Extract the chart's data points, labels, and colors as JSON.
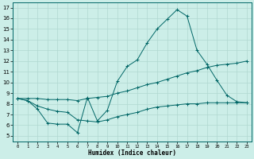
{
  "xlabel": "Humidex (Indice chaleur)",
  "background_color": "#cceee8",
  "grid_color": "#b0d8d0",
  "line_color": "#006666",
  "xlim": [
    -0.5,
    23.5
  ],
  "ylim": [
    4.5,
    17.5
  ],
  "xticks": [
    0,
    1,
    2,
    3,
    4,
    5,
    6,
    7,
    8,
    9,
    10,
    11,
    12,
    13,
    14,
    15,
    16,
    17,
    18,
    19,
    20,
    21,
    22,
    23
  ],
  "yticks": [
    5,
    6,
    7,
    8,
    9,
    10,
    11,
    12,
    13,
    14,
    15,
    16,
    17
  ],
  "series1_x": [
    0,
    1,
    2,
    3,
    4,
    5,
    6,
    7,
    8,
    9,
    10,
    11,
    12,
    13,
    14,
    15,
    16,
    17,
    18,
    19,
    20,
    21,
    22,
    23
  ],
  "series1_y": [
    8.5,
    8.3,
    7.5,
    6.2,
    6.1,
    6.1,
    5.3,
    8.6,
    6.4,
    7.4,
    10.1,
    11.5,
    12.1,
    13.7,
    15.0,
    15.9,
    16.8,
    16.2,
    13.0,
    11.7,
    10.2,
    8.8,
    8.2,
    8.1
  ],
  "series2_x": [
    0,
    1,
    2,
    3,
    4,
    5,
    6,
    7,
    8,
    9,
    10,
    11,
    12,
    13,
    14,
    15,
    16,
    17,
    18,
    19,
    20,
    21,
    22,
    23
  ],
  "series2_y": [
    8.5,
    8.5,
    8.5,
    8.4,
    8.4,
    8.4,
    8.3,
    8.5,
    8.6,
    8.7,
    9.0,
    9.2,
    9.5,
    9.8,
    10.0,
    10.3,
    10.6,
    10.9,
    11.1,
    11.4,
    11.6,
    11.7,
    11.8,
    12.0
  ],
  "series3_x": [
    0,
    1,
    2,
    3,
    4,
    5,
    6,
    7,
    8,
    9,
    10,
    11,
    12,
    13,
    14,
    15,
    16,
    17,
    18,
    19,
    20,
    21,
    22,
    23
  ],
  "series3_y": [
    8.5,
    8.3,
    7.8,
    7.5,
    7.3,
    7.2,
    6.5,
    6.4,
    6.3,
    6.5,
    6.8,
    7.0,
    7.2,
    7.5,
    7.7,
    7.8,
    7.9,
    8.0,
    8.0,
    8.1,
    8.1,
    8.1,
    8.1,
    8.1
  ]
}
